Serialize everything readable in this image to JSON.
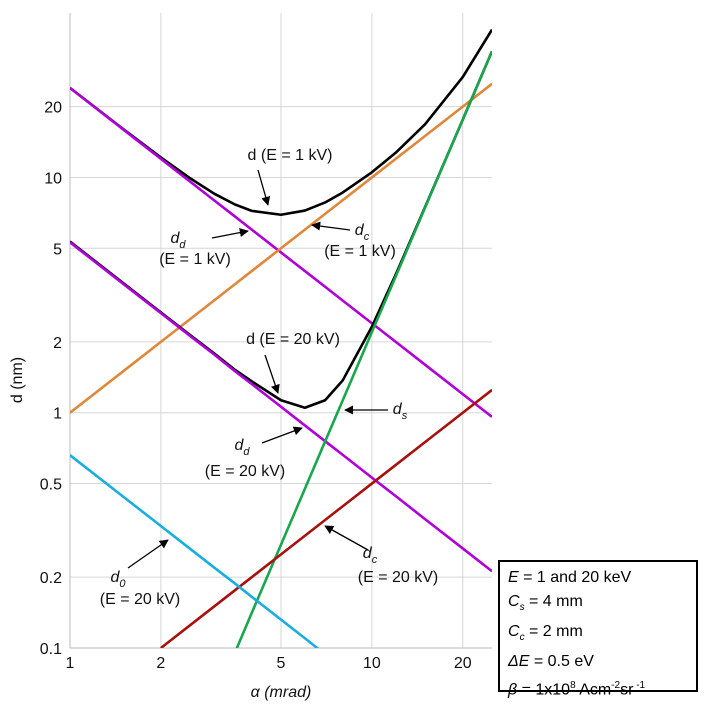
{
  "chart_data": {
    "type": "line",
    "log_x": true,
    "log_y": true,
    "grid": true,
    "xlabel": "α (mrad)",
    "ylabel": "d (nm)",
    "xlim": [
      1,
      25
    ],
    "ylim": [
      0.1,
      50
    ],
    "xticks": [
      1,
      2,
      5,
      10,
      20
    ],
    "yticks": [
      0.1,
      0.2,
      0.5,
      1,
      2,
      5,
      10,
      20
    ],
    "x": [
      1,
      1.5,
      2,
      2.5,
      3,
      3.5,
      4,
      5,
      6,
      7,
      8,
      10,
      12,
      15,
      20,
      25
    ],
    "series": [
      {
        "color": "#000000",
        "values": [
          24.02,
          16.07,
          12.17,
          9.92,
          8.54,
          7.7,
          7.21,
          6.94,
          7.23,
          7.83,
          8.62,
          10.52,
          12.75,
          16.82,
          26.7,
          42.5
        ]
      },
      {
        "color": "#b000d8",
        "values": [
          24,
          16,
          12,
          9.6,
          8,
          6.86,
          6,
          4.8,
          4,
          3.43,
          3,
          2.4,
          2,
          1.6,
          1.2,
          0.96
        ]
      },
      {
        "color": "#e0873a",
        "values": [
          1,
          1.5,
          2,
          2.5,
          3,
          3.5,
          4,
          5,
          6,
          7,
          8,
          10,
          12,
          15,
          20,
          25
        ]
      },
      {
        "color": "#000000",
        "values": [
          5.34,
          3.56,
          2.67,
          2.14,
          1.79,
          1.53,
          1.36,
          1.13,
          1.05,
          1.13,
          1.37,
          2.32,
          3.87,
          7.48,
          17.6,
          34.4
        ]
      },
      {
        "color": "#b000d8",
        "values": [
          5.3,
          3.53,
          2.65,
          2.12,
          1.77,
          1.51,
          1.325,
          1.06,
          0.883,
          0.757,
          0.663,
          0.53,
          0.442,
          0.353,
          0.265,
          0.212
        ]
      },
      {
        "color": "#19a64f",
        "values": [
          null,
          null,
          null,
          null,
          null,
          0.094,
          0.141,
          0.275,
          0.475,
          0.755,
          1.126,
          2.2,
          3.8,
          7.43,
          17.6,
          34.4
        ]
      },
      {
        "color": "#a81010",
        "values": [
          null,
          null,
          0.1,
          0.125,
          0.15,
          0.175,
          0.2,
          0.25,
          0.3,
          0.35,
          0.4,
          0.5,
          0.6,
          0.75,
          1,
          1.25
        ]
      },
      {
        "color": "#1aaee0",
        "values": [
          0.66,
          0.44,
          0.33,
          0.264,
          0.22,
          0.189,
          0.165,
          0.132,
          0.11,
          0.094,
          null,
          null,
          null,
          null,
          null,
          null
        ]
      }
    ],
    "annotations": [
      {
        "text": "d (E = 1 kV)"
      },
      {
        "text": "d",
        "sub": "d",
        "note": "(E = 1 kV)"
      },
      {
        "text": "d",
        "sub": "c",
        "note": "(E = 1 kV)"
      },
      {
        "text": "d (E = 20 kV)"
      },
      {
        "text": "d",
        "sub": "d",
        "note": "(E = 20 kV)"
      },
      {
        "text": "d",
        "sub": "s"
      },
      {
        "text": "d",
        "sub": "c",
        "note": "(E = 20 kV)"
      },
      {
        "text": "d",
        "sub": "0",
        "note": "(E = 20 kV)"
      }
    ],
    "info_box": [
      {
        "sym": "E",
        "text": " = 1 and 20 keV"
      },
      {
        "sym": "C",
        "sub": "s",
        "text": " = 4 mm"
      },
      {
        "sym": "C",
        "sub": "c",
        "text": " = 2 mm"
      },
      {
        "sym": "ΔE",
        "text": " = 0.5 eV"
      },
      {
        "sym": "β",
        "text": " = 1x10",
        "sup": "8",
        "text2": " Acm",
        "sup2": "-2",
        "text3": "sr",
        "sup3": " -1"
      }
    ]
  }
}
